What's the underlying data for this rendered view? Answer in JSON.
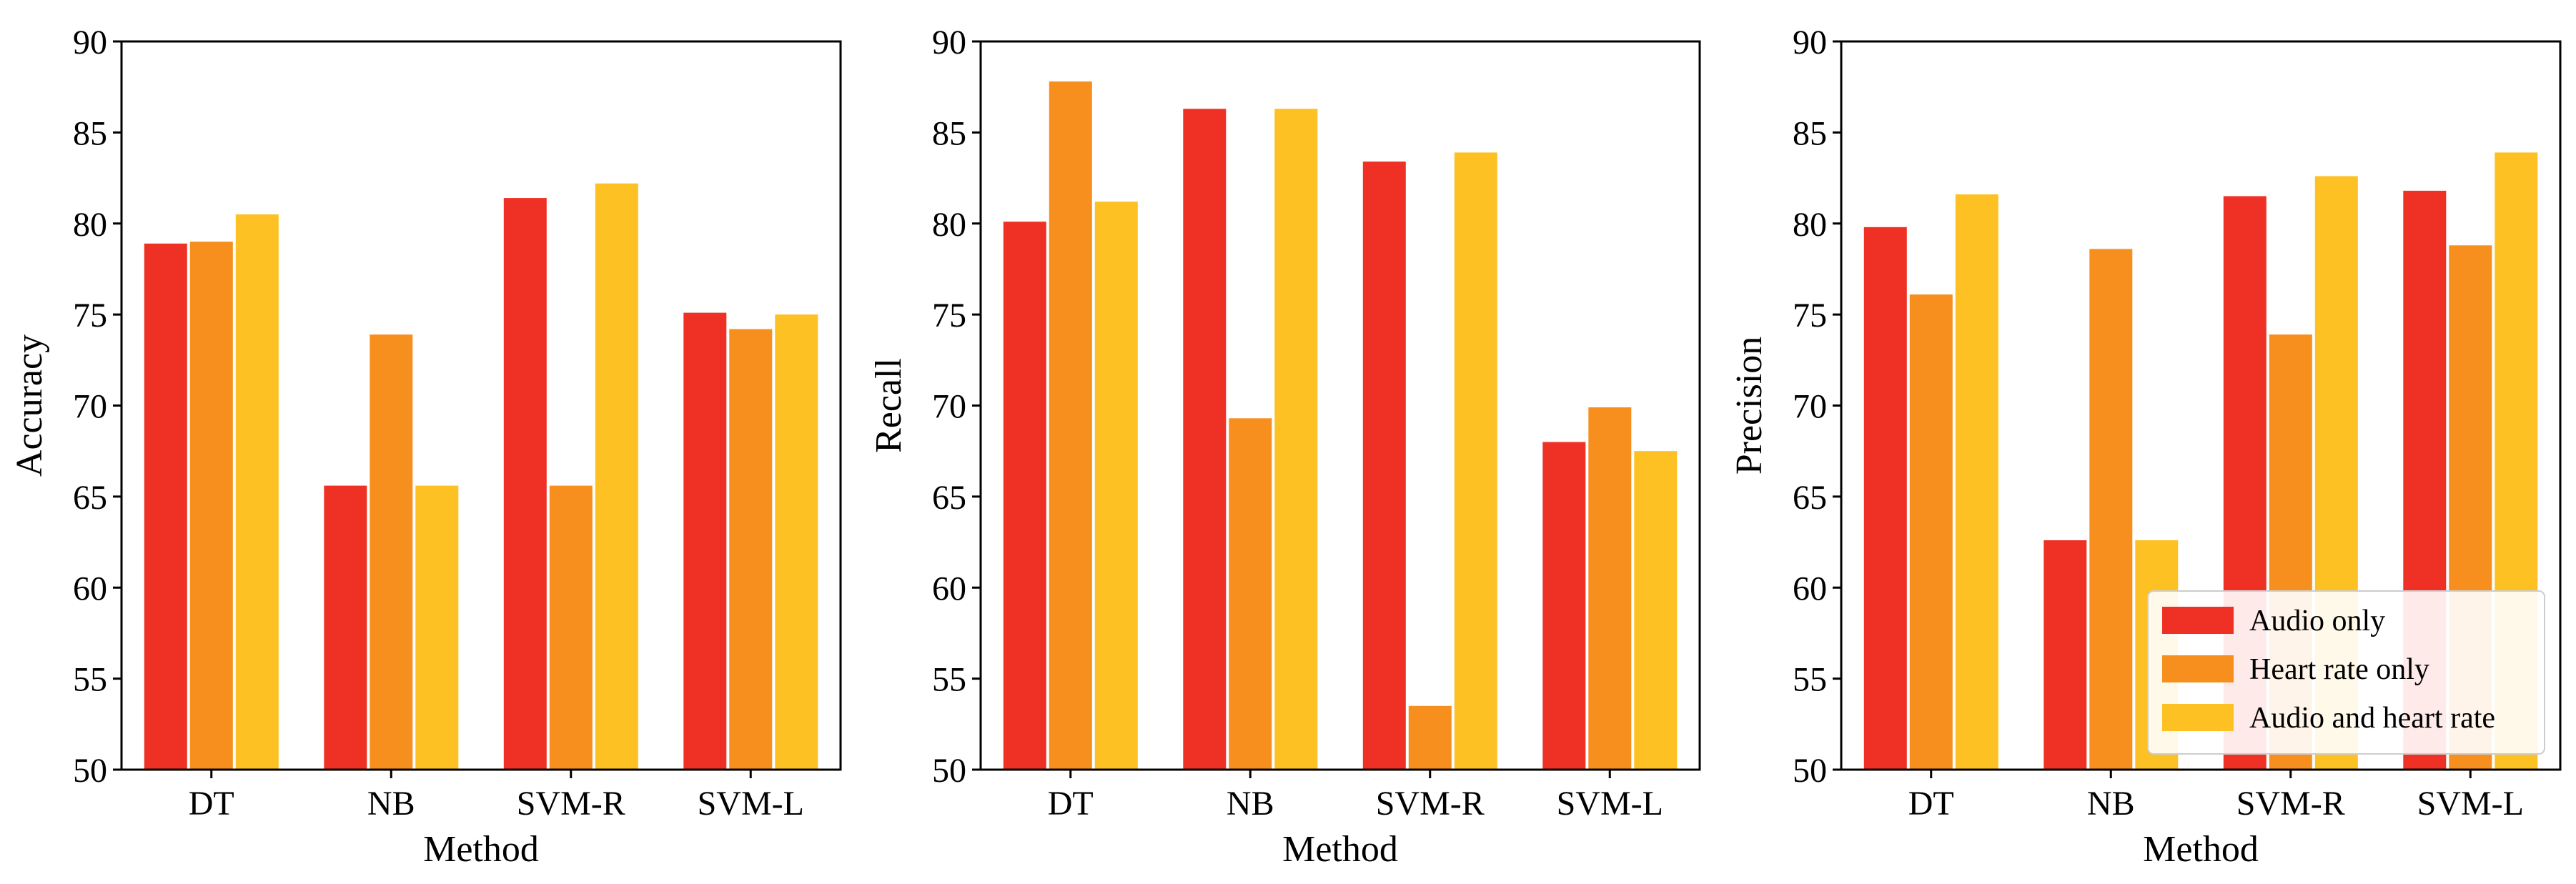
{
  "chart_data": [
    {
      "type": "bar",
      "title": "",
      "xlabel": "Method",
      "ylabel": "Accuracy",
      "ylim": [
        50,
        90
      ],
      "yticks": [
        50,
        55,
        60,
        65,
        70,
        75,
        80,
        85,
        90
      ],
      "categories": [
        "DT",
        "NB",
        "SVM-R",
        "SVM-L"
      ],
      "grid": false,
      "series": [
        {
          "name": "Audio only",
          "color": "#ee3124",
          "values": [
            78.9,
            65.6,
            81.4,
            75.1
          ]
        },
        {
          "name": "Heart rate only",
          "color": "#f78f1e",
          "values": [
            79.0,
            73.9,
            65.6,
            74.2
          ]
        },
        {
          "name": "Audio and heart rate",
          "color": "#fdc124",
          "values": [
            80.5,
            65.6,
            82.2,
            75.0
          ]
        }
      ]
    },
    {
      "type": "bar",
      "title": "",
      "xlabel": "Method",
      "ylabel": "Recall",
      "ylim": [
        50,
        90
      ],
      "yticks": [
        50,
        55,
        60,
        65,
        70,
        75,
        80,
        85,
        90
      ],
      "categories": [
        "DT",
        "NB",
        "SVM-R",
        "SVM-L"
      ],
      "grid": false,
      "series": [
        {
          "name": "Audio only",
          "color": "#ee3124",
          "values": [
            80.1,
            86.3,
            83.4,
            68.0
          ]
        },
        {
          "name": "Heart rate only",
          "color": "#f78f1e",
          "values": [
            87.8,
            69.3,
            53.5,
            69.9
          ]
        },
        {
          "name": "Audio and heart rate",
          "color": "#fdc124",
          "values": [
            81.2,
            86.3,
            83.9,
            67.5
          ]
        }
      ]
    },
    {
      "type": "bar",
      "title": "",
      "xlabel": "Method",
      "ylabel": "Precision",
      "ylim": [
        50,
        90
      ],
      "yticks": [
        50,
        55,
        60,
        65,
        70,
        75,
        80,
        85,
        90
      ],
      "categories": [
        "DT",
        "NB",
        "SVM-R",
        "SVM-L"
      ],
      "grid": false,
      "legend": {
        "position": "lower-right",
        "entries": [
          "Audio only",
          "Heart rate only",
          "Audio and heart rate"
        ]
      },
      "series": [
        {
          "name": "Audio only",
          "color": "#ee3124",
          "values": [
            79.8,
            62.6,
            81.5,
            81.8
          ]
        },
        {
          "name": "Heart rate only",
          "color": "#f78f1e",
          "values": [
            76.1,
            78.6,
            73.9,
            78.8
          ]
        },
        {
          "name": "Audio and heart rate",
          "color": "#fdc124",
          "values": [
            81.6,
            62.6,
            82.6,
            83.9
          ]
        }
      ]
    }
  ]
}
